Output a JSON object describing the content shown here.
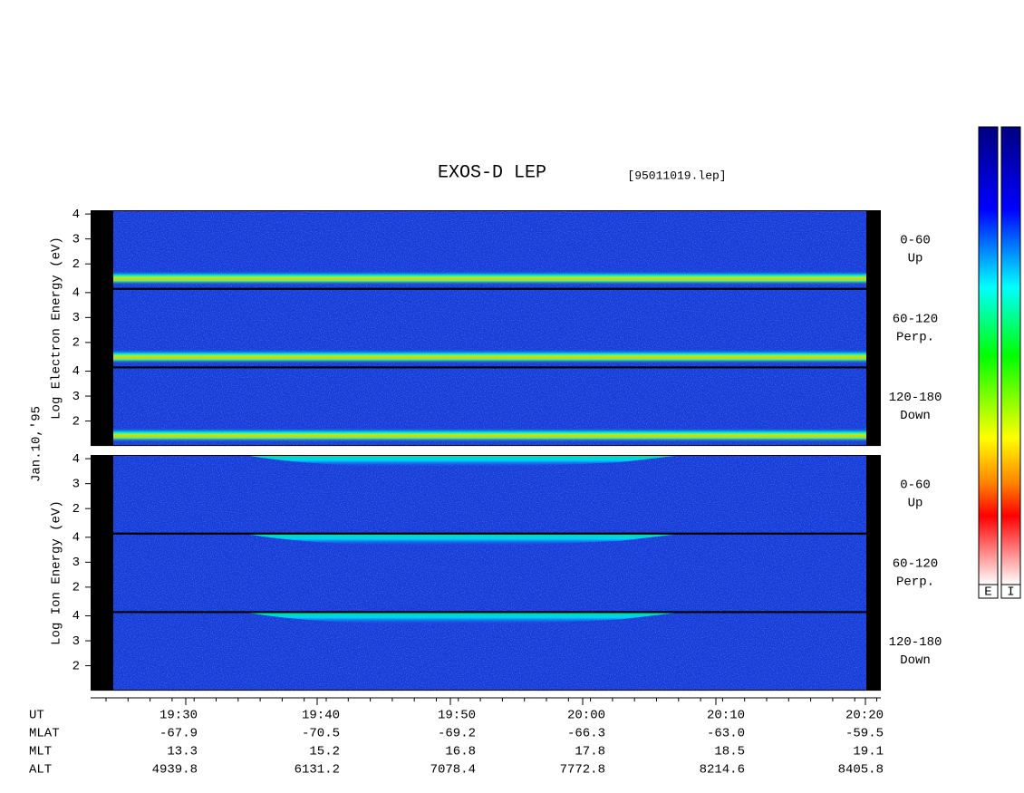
{
  "chart_data": {
    "type": "spectrogram",
    "title": "EXOS-D LEP",
    "subtitle": "[95011019.lep]",
    "date_label": "Jan.10,'95",
    "groups": [
      {
        "label": "Log Electron Energy (eV)",
        "species": "electron",
        "panels": [
          {
            "angle": "0-60",
            "direction": "Up"
          },
          {
            "angle": "60-120",
            "direction": "Perp."
          },
          {
            "angle": "120-180",
            "direction": "Down"
          }
        ]
      },
      {
        "label": "Log Ion Energy (eV)",
        "species": "ion",
        "panels": [
          {
            "angle": "0-60",
            "direction": "Up"
          },
          {
            "angle": "60-120",
            "direction": "Perp."
          },
          {
            "angle": "120-180",
            "direction": "Down"
          }
        ]
      }
    ],
    "ylim": [
      1,
      4.15
    ],
    "yticks": [
      2,
      3,
      4
    ],
    "x_label": "UT",
    "x_labels": [
      "19:30",
      "19:40",
      "19:50",
      "20:00",
      "20:10",
      "20:20"
    ],
    "orbit": [
      {
        "name": "MLAT",
        "values": [
          "-67.9",
          "-70.5",
          "-69.2",
          "-66.3",
          "-63.0",
          "-59.5"
        ]
      },
      {
        "name": "MLT",
        "values": [
          "13.3",
          "15.2",
          "16.8",
          "17.8",
          "18.5",
          "19.1"
        ]
      },
      {
        "name": "ALT",
        "values": [
          "4939.8",
          "6131.2",
          "7078.4",
          "7772.8",
          "8214.6",
          "8405.8"
        ]
      }
    ],
    "colorbar_labels": [
      "E",
      "I"
    ]
  }
}
